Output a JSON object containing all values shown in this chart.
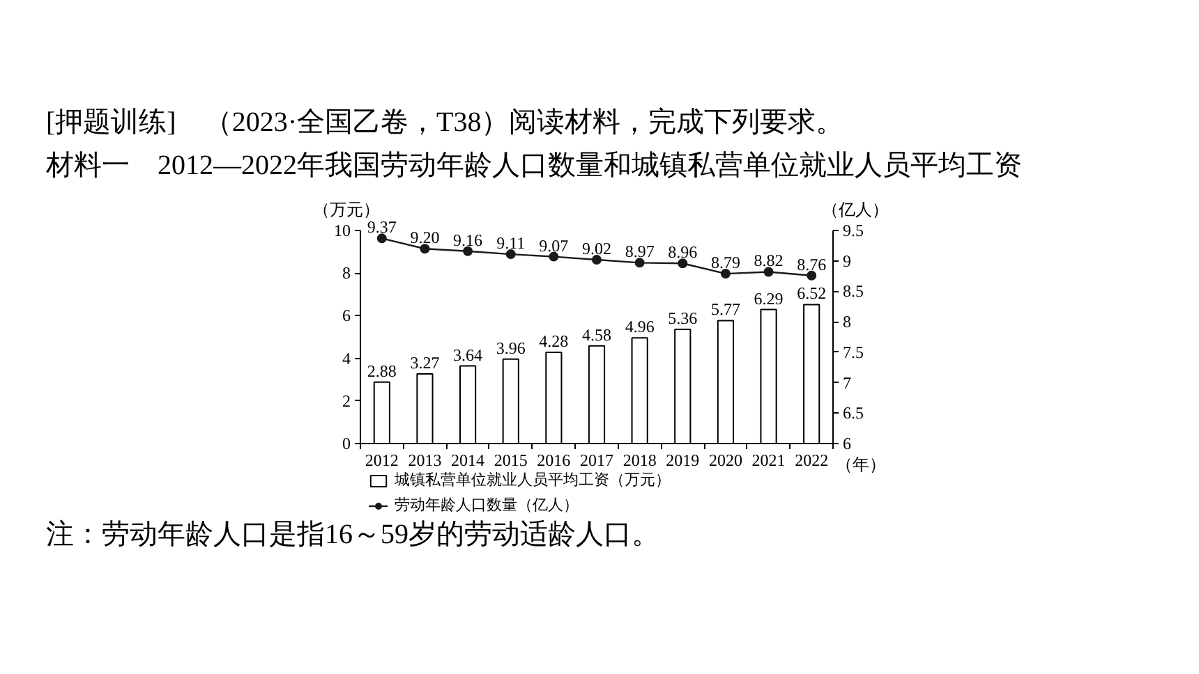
{
  "chart_data": {
    "type": "bar",
    "title": "[押题训练]　（2023·全国乙卷，T38）阅读材料，完成下列要求。",
    "subtitle": "材料一　2012—2022年我国劳动年龄人口数量和城镇私营单位就业人员平均工资",
    "xlabel": "（年）",
    "ylabel": "（万元）",
    "y2label": "（亿人）",
    "annotations": [
      "注：劳动年龄人口是指16～59岁的劳动适龄人口。"
    ],
    "categories": [
      "2012",
      "2013",
      "2014",
      "2015",
      "2016",
      "2017",
      "2018",
      "2019",
      "2020",
      "2021",
      "2022"
    ],
    "series": [
      {
        "name": "城镇私营单位就业人员平均工资（万元）",
        "color": "#ffffff",
        "values": [
          2.88,
          3.27,
          3.64,
          3.96,
          4.28,
          4.58,
          4.96,
          5.36,
          5.77,
          6.29,
          6.52
        ],
        "value_labels": [
          "2.88",
          "3.27",
          "3.64",
          "3.96",
          "4.28",
          "4.58",
          "4.96",
          "5.36",
          "5.77",
          "6.29",
          "6.52"
        ]
      },
      {
        "name": "劳动年龄人口数量（亿人）",
        "type": "line",
        "axis": "y2",
        "color": "#1a1a1a",
        "values": [
          9.37,
          9.2,
          9.16,
          9.11,
          9.07,
          9.02,
          8.97,
          8.96,
          8.79,
          8.82,
          8.76
        ],
        "value_labels": [
          "9.37",
          "9.20",
          "9.16",
          "9.11",
          "9.07",
          "9.02",
          "8.97",
          "8.96",
          "8.79",
          "8.82",
          "8.76"
        ]
      }
    ],
    "ylim": [
      0,
      10
    ],
    "yticks": [
      0,
      2,
      4,
      6,
      8,
      10
    ],
    "y2lim": [
      6,
      9.5
    ],
    "y2ticks": [
      6,
      6.5,
      7,
      7.5,
      8,
      8.5,
      9,
      9.5
    ],
    "grid": false,
    "legend": "bottom",
    "marker": "circle",
    "line_style": "solid"
  }
}
